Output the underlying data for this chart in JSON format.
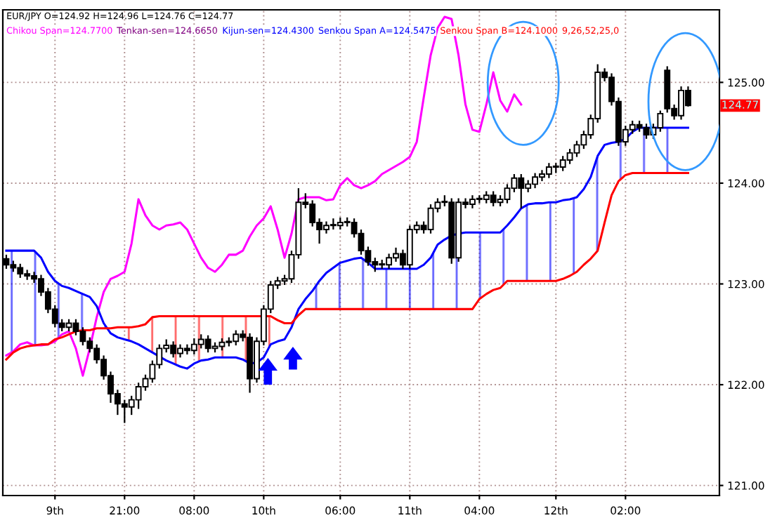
{
  "chart_data": {
    "type": "candlestick",
    "title": "EUR/JPY O=124.92 H=124.96 L=124.76 C=124.77",
    "categories": [
      null,
      null,
      null,
      null,
      null,
      null,
      null,
      "9th",
      null,
      null,
      null,
      null,
      null,
      null,
      null,
      null,
      null,
      "21:00",
      null,
      null,
      null,
      null,
      null,
      null,
      null,
      null,
      null,
      "08:00",
      null,
      null,
      null,
      null,
      null,
      null,
      null,
      null,
      null,
      "10th",
      null,
      null,
      null,
      null,
      null,
      null,
      null,
      null,
      null,
      null,
      "06:00",
      null,
      null,
      null,
      null,
      null,
      null,
      null,
      null,
      null,
      "11th",
      null,
      null,
      null,
      null,
      null,
      null,
      null,
      null,
      null,
      "04:00",
      null,
      null,
      null,
      null,
      null,
      null,
      null,
      null,
      null,
      null,
      "12th",
      null,
      null,
      null,
      null,
      null,
      null,
      null,
      null,
      null,
      "02:00",
      null,
      null,
      null,
      null,
      null,
      null,
      null,
      null,
      null
    ],
    "ohlc": [
      [
        123.25,
        123.29,
        123.15,
        123.19
      ],
      [
        123.19,
        123.23,
        123.12,
        123.16
      ],
      [
        123.16,
        123.2,
        123.06,
        123.1
      ],
      [
        123.1,
        123.14,
        123.04,
        123.08
      ],
      [
        123.08,
        123.12,
        123.01,
        123.05
      ],
      [
        123.05,
        123.09,
        122.88,
        122.92
      ],
      [
        122.92,
        122.96,
        122.71,
        122.75
      ],
      [
        122.75,
        122.79,
        122.57,
        122.61
      ],
      [
        122.61,
        122.65,
        122.53,
        122.57
      ],
      [
        122.57,
        122.65,
        122.53,
        122.61
      ],
      [
        122.61,
        122.65,
        122.49,
        122.53
      ],
      [
        122.53,
        122.57,
        122.39,
        122.43
      ],
      [
        122.43,
        122.47,
        122.32,
        122.36
      ],
      [
        122.36,
        122.4,
        122.21,
        122.25
      ],
      [
        122.25,
        122.29,
        122.05,
        122.09
      ],
      [
        122.09,
        122.13,
        121.82,
        121.91
      ],
      [
        121.91,
        121.95,
        121.7,
        121.81
      ],
      [
        121.81,
        121.85,
        121.62,
        121.78
      ],
      [
        121.78,
        121.89,
        121.7,
        121.85
      ],
      [
        121.85,
        122.02,
        121.76,
        121.98
      ],
      [
        121.98,
        122.1,
        121.94,
        122.06
      ],
      [
        122.06,
        122.24,
        122.02,
        122.2
      ],
      [
        122.2,
        122.4,
        122.16,
        122.36
      ],
      [
        122.36,
        122.45,
        122.32,
        122.39
      ],
      [
        122.39,
        122.43,
        122.27,
        122.31
      ],
      [
        122.31,
        122.4,
        122.27,
        122.36
      ],
      [
        122.36,
        122.4,
        122.3,
        122.34
      ],
      [
        122.34,
        122.46,
        122.3,
        122.4
      ],
      [
        122.4,
        122.5,
        122.36,
        122.45
      ],
      [
        122.45,
        122.49,
        122.32,
        122.36
      ],
      [
        122.36,
        122.42,
        122.32,
        122.38
      ],
      [
        122.38,
        122.46,
        122.34,
        122.42
      ],
      [
        122.42,
        122.47,
        122.38,
        122.43
      ],
      [
        122.43,
        122.54,
        122.39,
        122.5
      ],
      [
        122.5,
        122.54,
        122.43,
        122.47
      ],
      [
        122.47,
        122.51,
        121.92,
        122.06
      ],
      [
        122.06,
        122.47,
        122.02,
        122.43
      ],
      [
        122.43,
        122.79,
        122.39,
        122.75
      ],
      [
        122.75,
        123.03,
        122.71,
        122.99
      ],
      [
        122.99,
        123.07,
        122.95,
        123.03
      ],
      [
        123.03,
        123.09,
        122.99,
        123.05
      ],
      [
        123.05,
        123.33,
        123.01,
        123.29
      ],
      [
        123.29,
        123.95,
        123.25,
        123.81
      ],
      [
        123.81,
        123.9,
        123.75,
        123.79
      ],
      [
        123.79,
        123.83,
        123.57,
        123.61
      ],
      [
        123.61,
        123.65,
        123.4,
        123.54
      ],
      [
        123.54,
        123.62,
        123.5,
        123.58
      ],
      [
        123.58,
        123.65,
        123.54,
        123.58
      ],
      [
        123.58,
        123.66,
        123.54,
        123.61
      ],
      [
        123.61,
        123.66,
        123.57,
        123.61
      ],
      [
        123.61,
        123.65,
        123.46,
        123.5
      ],
      [
        123.5,
        123.54,
        123.29,
        123.33
      ],
      [
        123.33,
        123.37,
        123.18,
        123.22
      ],
      [
        123.22,
        123.26,
        123.12,
        123.19
      ],
      [
        123.19,
        123.24,
        123.15,
        123.19
      ],
      [
        123.19,
        123.3,
        123.15,
        123.26
      ],
      [
        123.26,
        123.36,
        123.22,
        123.3
      ],
      [
        123.3,
        123.34,
        123.15,
        123.19
      ],
      [
        123.19,
        123.58,
        123.15,
        123.54
      ],
      [
        123.54,
        123.62,
        123.5,
        123.58
      ],
      [
        123.58,
        123.62,
        123.5,
        123.54
      ],
      [
        123.54,
        123.79,
        123.5,
        123.75
      ],
      [
        123.75,
        123.85,
        123.71,
        123.81
      ],
      [
        123.81,
        123.88,
        123.77,
        123.81
      ],
      [
        123.81,
        123.85,
        123.2,
        123.26
      ],
      [
        123.26,
        123.85,
        123.22,
        123.81
      ],
      [
        123.81,
        123.85,
        123.75,
        123.79
      ],
      [
        123.79,
        123.88,
        123.75,
        123.84
      ],
      [
        123.84,
        123.88,
        123.8,
        123.84
      ],
      [
        123.84,
        123.92,
        123.8,
        123.88
      ],
      [
        123.88,
        123.92,
        123.77,
        123.81
      ],
      [
        123.81,
        123.88,
        123.77,
        123.84
      ],
      [
        123.84,
        123.99,
        123.8,
        123.95
      ],
      [
        123.95,
        124.09,
        123.91,
        124.05
      ],
      [
        124.05,
        124.09,
        123.75,
        123.95
      ],
      [
        123.95,
        124.03,
        123.91,
        123.99
      ],
      [
        123.99,
        124.1,
        123.95,
        124.06
      ],
      [
        124.06,
        124.13,
        124.02,
        124.09
      ],
      [
        124.09,
        124.2,
        124.05,
        124.16
      ],
      [
        124.16,
        124.2,
        124.1,
        124.16
      ],
      [
        124.16,
        124.27,
        124.12,
        124.23
      ],
      [
        124.23,
        124.34,
        124.19,
        124.3
      ],
      [
        124.3,
        124.42,
        124.26,
        124.38
      ],
      [
        124.38,
        124.52,
        124.34,
        124.48
      ],
      [
        124.48,
        124.68,
        124.44,
        124.64
      ],
      [
        124.64,
        125.18,
        124.6,
        125.1
      ],
      [
        125.1,
        125.14,
        125.01,
        125.05
      ],
      [
        125.05,
        125.09,
        124.77,
        124.81
      ],
      [
        124.81,
        124.85,
        124.37,
        124.41
      ],
      [
        124.41,
        124.57,
        124.37,
        124.53
      ],
      [
        124.53,
        124.62,
        124.49,
        124.58
      ],
      [
        124.58,
        124.62,
        124.51,
        124.55
      ],
      [
        124.55,
        124.59,
        124.44,
        124.48
      ],
      [
        124.48,
        124.59,
        124.44,
        124.55
      ],
      [
        124.55,
        124.72,
        124.51,
        124.69
      ],
      [
        125.12,
        125.16,
        124.7,
        124.74
      ],
      [
        124.74,
        124.78,
        124.63,
        124.67
      ],
      [
        124.67,
        124.96,
        124.63,
        124.92
      ],
      [
        124.92,
        124.96,
        124.76,
        124.77
      ]
    ],
    "series": [
      {
        "type": "line",
        "color": "#ff00ff",
        "values": [
          122.29,
          122.33,
          122.4,
          122.42,
          122.39,
          122.39,
          122.4,
          122.43,
          122.5,
          122.53,
          122.36,
          122.09,
          122.36,
          122.67,
          122.92,
          123.05,
          123.08,
          123.12,
          123.4,
          123.84,
          123.68,
          123.58,
          123.54,
          123.58,
          123.59,
          123.61,
          123.54,
          123.4,
          123.26,
          123.16,
          123.12,
          123.19,
          123.29,
          123.29,
          123.33,
          123.47,
          123.58,
          123.65,
          123.77,
          123.54,
          123.26,
          123.5,
          123.84,
          123.86,
          123.86,
          123.86,
          123.83,
          123.84,
          123.98,
          124.05,
          123.98,
          123.95,
          123.98,
          124.02,
          124.09,
          124.13,
          124.17,
          124.21,
          124.26,
          124.41,
          124.85,
          125.27,
          125.54,
          125.65,
          125.63,
          125.27,
          124.78,
          124.53,
          124.51,
          124.78,
          125.1,
          124.82,
          124.71,
          124.88,
          124.78,
          null,
          null,
          null,
          null,
          null,
          null,
          null,
          null,
          null,
          null,
          null,
          null,
          null,
          null,
          null,
          null,
          null,
          null,
          null,
          null,
          null,
          null,
          null,
          null
        ]
      },
      {
        "type": "line",
        "color": "#0000ff",
        "values": [
          123.33,
          123.33,
          123.33,
          123.33,
          123.33,
          123.26,
          123.12,
          123.03,
          122.98,
          122.96,
          122.93,
          122.9,
          122.87,
          122.78,
          122.61,
          122.51,
          122.47,
          122.45,
          122.43,
          122.4,
          122.36,
          122.32,
          122.28,
          122.24,
          122.21,
          122.18,
          122.16,
          122.21,
          122.24,
          122.25,
          122.27,
          122.27,
          122.27,
          122.27,
          122.25,
          122.21,
          122.22,
          122.27,
          122.4,
          122.43,
          122.45,
          122.57,
          122.75,
          122.85,
          122.93,
          123.03,
          123.11,
          123.16,
          123.21,
          123.23,
          123.25,
          123.26,
          123.21,
          123.15,
          123.15,
          123.15,
          123.15,
          123.15,
          123.15,
          123.15,
          123.19,
          123.26,
          123.39,
          123.44,
          123.48,
          123.5,
          123.51,
          123.51,
          123.51,
          123.51,
          123.51,
          123.51,
          123.58,
          123.66,
          123.75,
          123.79,
          123.8,
          123.8,
          123.81,
          123.81,
          123.83,
          123.84,
          123.86,
          123.94,
          124.06,
          124.27,
          124.38,
          124.4,
          124.41,
          124.44,
          124.51,
          124.55,
          124.55,
          124.55,
          124.55,
          124.55,
          124.55,
          124.55,
          124.55
        ]
      },
      {
        "type": "line",
        "color": "#ff0000",
        "values": [
          122.25,
          122.32,
          122.36,
          122.38,
          122.39,
          122.4,
          122.4,
          122.45,
          122.47,
          122.5,
          122.53,
          122.54,
          122.54,
          122.56,
          122.56,
          122.56,
          122.57,
          122.57,
          122.57,
          122.58,
          122.6,
          122.67,
          122.68,
          122.68,
          122.68,
          122.68,
          122.68,
          122.68,
          122.68,
          122.68,
          122.68,
          122.68,
          122.68,
          122.68,
          122.68,
          122.68,
          122.68,
          122.68,
          122.68,
          122.64,
          122.61,
          122.61,
          122.69,
          122.75,
          122.75,
          122.75,
          122.75,
          122.75,
          122.75,
          122.75,
          122.75,
          122.75,
          122.75,
          122.75,
          122.75,
          122.75,
          122.75,
          122.75,
          122.75,
          122.75,
          122.75,
          122.75,
          122.75,
          122.75,
          122.75,
          122.75,
          122.75,
          122.75,
          122.85,
          122.9,
          122.94,
          122.96,
          123.03,
          123.03,
          123.03,
          123.03,
          123.03,
          123.03,
          123.03,
          123.03,
          123.05,
          123.08,
          123.12,
          123.19,
          123.25,
          123.33,
          123.61,
          123.88,
          124.02,
          124.08,
          124.1,
          124.1,
          124.1,
          124.1,
          124.1,
          124.1,
          124.1,
          124.1,
          124.1
        ]
      }
    ],
    "ylim": [
      120.9,
      125.72
    ],
    "yticks": [
      {
        "value": 121,
        "label": "121.00"
      },
      {
        "value": 122,
        "label": "122.00"
      },
      {
        "value": 123,
        "label": "123.00"
      },
      {
        "value": 124,
        "label": "124.00"
      },
      {
        "value": 125,
        "label": "125.00"
      }
    ],
    "grid": true,
    "annotations": [
      "Chikou Span=124.7700",
      "Tenkan-sen=124.6650",
      "Kijun-sen=124.4300",
      "Senkou Span A=124.5475",
      "Senkou Span B=124.1000",
      "9,26,52,25,0",
      "124.77"
    ]
  }
}
